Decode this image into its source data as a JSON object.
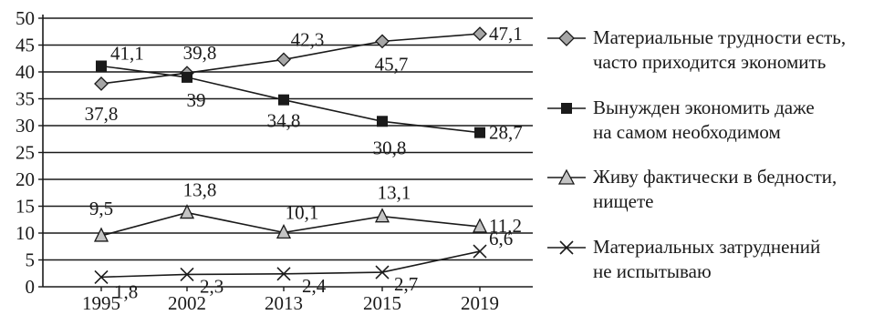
{
  "chart_data": {
    "type": "line",
    "categories": [
      "1995",
      "2002",
      "2013",
      "2015",
      "2019"
    ],
    "ylim": [
      0,
      50
    ],
    "yticks": [
      "0",
      "5",
      "10",
      "15",
      "20",
      "25",
      "30",
      "35",
      "40",
      "45",
      "50"
    ],
    "grid": true,
    "legend_position": "right",
    "series": [
      {
        "name": "Материальные трудности есть, часто приходится экономить",
        "name_lines": [
          "Материальные трудности есть,",
          "часто приходится экономить"
        ],
        "marker": "diamond",
        "values": [
          37.8,
          39.8,
          42.3,
          45.7,
          47.1
        ],
        "labels": [
          "37,8",
          "39,8",
          "42,3",
          "45,7",
          "47,1"
        ]
      },
      {
        "name": "Вынужден экономить даже на самом необходимом",
        "name_lines": [
          "Вынужден экономить даже",
          "на самом необходимом"
        ],
        "marker": "square",
        "values": [
          41.1,
          39,
          34.8,
          30.8,
          28.7
        ],
        "labels": [
          "41,1",
          "39",
          "34,8",
          "30,8",
          "28,7"
        ]
      },
      {
        "name": "Живу фактически в бедности, нищете",
        "name_lines": [
          "Живу фактически в бедности,",
          "нищете"
        ],
        "marker": "triangle",
        "values": [
          9.5,
          13.8,
          10.1,
          13.1,
          11.2
        ],
        "labels": [
          "9,5",
          "13,8",
          "10,1",
          "13,1",
          "11,2"
        ]
      },
      {
        "name": "Материальных затруднений не испытываю",
        "name_lines": [
          "Материальных затруднений",
          "не испытываю"
        ],
        "marker": "cross",
        "values": [
          1.8,
          2.3,
          2.4,
          2.7,
          6.6
        ],
        "labels": [
          "1,8",
          "2,3",
          "2,4",
          "2,7",
          "6,6"
        ]
      }
    ]
  }
}
